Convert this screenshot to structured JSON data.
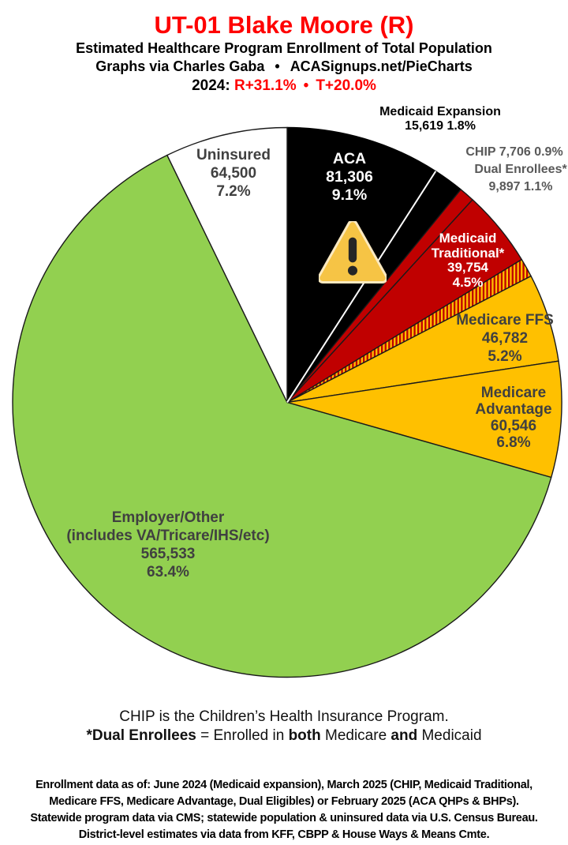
{
  "header": {
    "title": "UT-01 Blake Moore (R)",
    "title_color": "#ff0000",
    "subtitle": "Estimated Healthcare Program Enrollment of Total Population",
    "credit_left": "Graphs via Charles Gaba",
    "credit_bullet": "•",
    "credit_right": "ACASignups.net/PieCharts",
    "margin_year": "2024:",
    "margin_r": "R+31.1%",
    "margin_bullet": "•",
    "margin_t": "T+20.0%",
    "margin_color": "#ff0000"
  },
  "chart_data": {
    "type": "pie",
    "title": "Estimated Healthcare Program Enrollment of Total Population",
    "units": "people",
    "start_angle": "12 o'clock",
    "direction": "clockwise",
    "slices": [
      {
        "name": "ACA",
        "value": "81,306",
        "pct": 9.1,
        "color": "#000000",
        "separator": "#000000",
        "lines": [
          "ACA",
          "81,306",
          "9.1%"
        ]
      },
      {
        "name": "Medicaid Expansion",
        "value": "15,619",
        "pct": 1.8,
        "color": "#000000",
        "separator": "#000000",
        "lines": [
          "Medicaid Expansion",
          "15,619 1.8%"
        ]
      },
      {
        "name": "CHIP",
        "value": "7,706",
        "pct": 0.9,
        "color": "#c00000",
        "separator": "#1a1a1a",
        "lines": [
          "CHIP 7,706 0.9%"
        ]
      },
      {
        "name": "Medicaid Traditional",
        "value": "39,754",
        "pct": 4.5,
        "color": "#c00000",
        "separator": "#1a1a1a",
        "lines": [
          "Medicaid",
          "Traditional*",
          "39,754",
          "4.5%"
        ]
      },
      {
        "name": "Dual Enrollees",
        "value": "9,897",
        "pct": 1.1,
        "color": "hatch",
        "separator": "#1a1a1a",
        "lines": [
          "Dual Enrollees*",
          "9,897 1.1%"
        ]
      },
      {
        "name": "Medicare FFS",
        "value": "46,782",
        "pct": 5.2,
        "color": "#ffc000",
        "separator": "#1a1a1a",
        "lines": [
          "Medicare FFS",
          "46,782",
          "5.2%"
        ]
      },
      {
        "name": "Medicare Advantage",
        "value": "60,546",
        "pct": 6.8,
        "color": "#ffc000",
        "separator": "#1a1a1a",
        "lines": [
          "Medicare",
          "Advantage",
          "60,546",
          "6.8%"
        ]
      },
      {
        "name": "Employer/Other",
        "value": "565,533",
        "pct": 63.4,
        "color": "#92d050",
        "separator": "#1a1a1a",
        "lines": [
          "Employer/Other",
          "(includes VA/Tricare/IHS/etc)",
          "565,533",
          "63.4%"
        ]
      },
      {
        "name": "Uninsured",
        "value": "64,500",
        "pct": 7.2,
        "color": "#ffffff",
        "separator": "#1a1a1a",
        "lines": [
          "Uninsured",
          "64,500",
          "7.2%"
        ]
      }
    ],
    "hatch": {
      "colors": [
        "#c00000",
        "#ffc000"
      ],
      "meaning": "Dual Enrollees shown striped in both Medicaid red and Medicare gold"
    },
    "white_separator_after_pct": 9.1,
    "annotations": [
      {
        "type": "warning-triangle",
        "on_slice": "ACA"
      }
    ]
  },
  "notes": {
    "line1": "CHIP is the Children’s Health Insurance Program.",
    "line2": {
      "b1": "*Dual Enrollees",
      "r1": " = Enrolled in ",
      "b2": "both",
      "r2": " Medicare ",
      "b3": "and",
      "r3": " Medicaid"
    }
  },
  "footer": {
    "lines": [
      "Enrollment data as of: June 2024 (Medicaid expansion), March 2025 (CHIP, Medicaid Traditional,",
      "Medicare FFS, Medicare Advantage, Dual Eligibles) or February 2025 (ACA QHPs & BHPs).",
      "Statewide program data via CMS; statewide population & uninsured data via U.S. Census Bureau.",
      "District-level estimates via data from KFF, CBPP & House Ways & Means Cmte."
    ]
  }
}
